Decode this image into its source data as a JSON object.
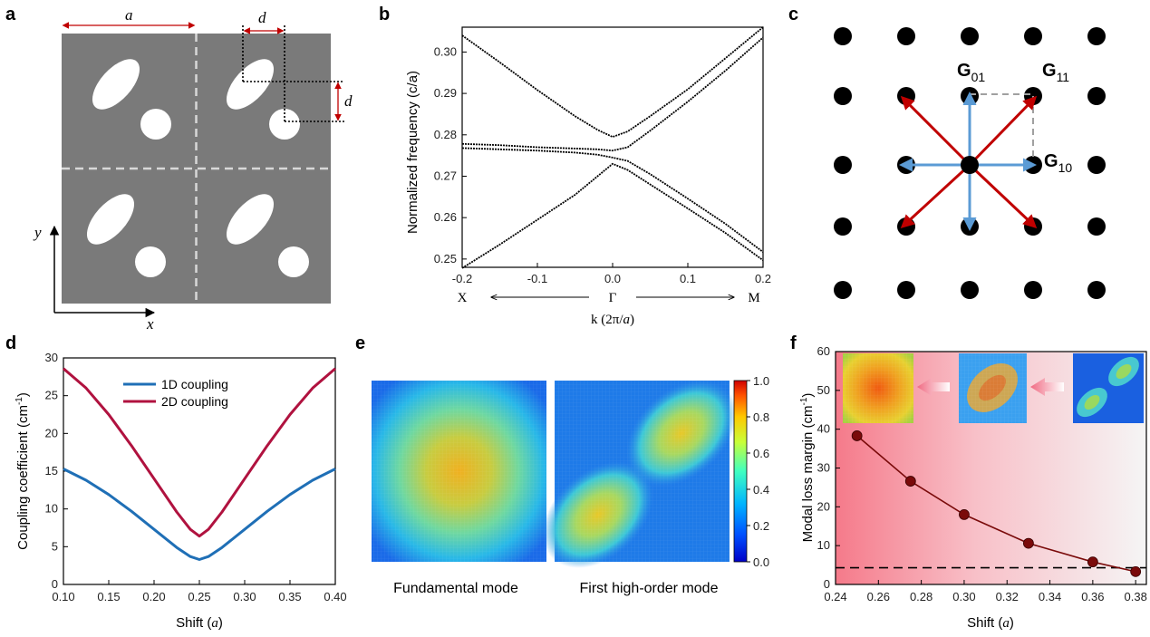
{
  "panel_labels": {
    "a": "a",
    "b": "b",
    "c": "c",
    "d": "d",
    "e": "e",
    "f": "f"
  },
  "panel_a": {
    "a_label": "a",
    "d_label_top": "d",
    "d_label_side": "d",
    "y_label": "y",
    "x_label": "x"
  },
  "panel_b": {
    "ylabel": "Normalized frequency (c/a)",
    "xlabel_prefix": "k (2π/",
    "xlabel_var": "a",
    "xlabel_suffix": ")",
    "x_left": "X",
    "x_mid": "Γ",
    "x_right": "M"
  },
  "panel_c": {
    "g01": "G",
    "g01_sub": "01",
    "g11": "G",
    "g11_sub": "11",
    "g10": "G",
    "g10_sub": "10"
  },
  "panel_d": {
    "ylabel": "Coupling coefficient (cm",
    "ylabel_sup": "-1",
    "ylabel_end": ")",
    "xlabel": "Shift (",
    "xlabel_var": "a",
    "xlabel_end": ")",
    "legend_1d": "1D coupling",
    "legend_2d": "2D coupling"
  },
  "panel_e": {
    "caption_left": "Fundamental mode",
    "caption_right": "First high-order mode",
    "colorbar_ticks": [
      "1.0",
      "0.8",
      "0.6",
      "0.4",
      "0.2",
      "0.0"
    ]
  },
  "panel_f": {
    "ylabel": "Modal loss margin (cm",
    "ylabel_sup": "-1",
    "ylabel_end": ")",
    "xlabel": "Shift (",
    "xlabel_var": "a",
    "xlabel_end": ")"
  },
  "colors": {
    "cell": "#7a7a7a",
    "red": "#b00000",
    "arrow_red": "#c00000",
    "arrow_blue": "#5b9bd5",
    "line_1d": "#1f6fb6",
    "line_2d": "#b0123f",
    "marker_f": "#7a0a0a"
  },
  "chart_data": [
    {
      "id": "b",
      "type": "line",
      "xlabel": "k (2π/a)",
      "ylabel": "Normalized frequency (c/a)",
      "xlim": [
        -0.2,
        0.2
      ],
      "ylim": [
        0.248,
        0.306
      ],
      "xticks": [
        -0.2,
        -0.1,
        0.0,
        0.1,
        0.2
      ],
      "yticks": [
        0.25,
        0.26,
        0.27,
        0.28,
        0.29,
        0.3
      ],
      "bands": [
        {
          "x": [
            -0.2,
            -0.15,
            -0.1,
            -0.05,
            -0.02,
            0.0,
            0.02,
            0.05,
            0.1,
            0.15,
            0.2
          ],
          "y": [
            0.2478,
            0.2535,
            0.2595,
            0.2655,
            0.27,
            0.273,
            0.2715,
            0.268,
            0.2622,
            0.2563,
            0.2497
          ]
        },
        {
          "x": [
            -0.2,
            -0.15,
            -0.1,
            -0.05,
            -0.02,
            0.0,
            0.02,
            0.05,
            0.1,
            0.15,
            0.2
          ],
          "y": [
            0.2768,
            0.2765,
            0.2762,
            0.2757,
            0.2752,
            0.2745,
            0.2737,
            0.2705,
            0.2646,
            0.2585,
            0.2517
          ]
        },
        {
          "x": [
            -0.2,
            -0.15,
            -0.1,
            -0.05,
            -0.02,
            0.0,
            0.02,
            0.05,
            0.1,
            0.15,
            0.2
          ],
          "y": [
            0.2778,
            0.2775,
            0.277,
            0.2767,
            0.2765,
            0.2762,
            0.277,
            0.281,
            0.288,
            0.2955,
            0.3035
          ]
        },
        {
          "x": [
            -0.2,
            -0.15,
            -0.1,
            -0.05,
            -0.02,
            0.0,
            0.02,
            0.05,
            0.1,
            0.15,
            0.2
          ],
          "y": [
            0.304,
            0.2975,
            0.2908,
            0.2845,
            0.2812,
            0.2795,
            0.2808,
            0.2845,
            0.291,
            0.2985,
            0.306
          ]
        }
      ]
    },
    {
      "id": "d",
      "type": "line",
      "xlabel": "Shift (a)",
      "ylabel": "Coupling coefficient (cm-1)",
      "xlim": [
        0.1,
        0.4
      ],
      "ylim": [
        0,
        30
      ],
      "xticks": [
        "0.10",
        "0.15",
        "0.20",
        "0.25",
        "0.30",
        "0.35",
        "0.40"
      ],
      "yticks": [
        0,
        5,
        10,
        15,
        20,
        25,
        30
      ],
      "series": [
        {
          "name": "1D coupling",
          "x": [
            0.1,
            0.125,
            0.15,
            0.175,
            0.2,
            0.225,
            0.24,
            0.25,
            0.26,
            0.275,
            0.3,
            0.325,
            0.35,
            0.375,
            0.4
          ],
          "y": [
            15.3,
            13.8,
            11.9,
            9.7,
            7.3,
            4.9,
            3.7,
            3.3,
            3.7,
            4.9,
            7.3,
            9.7,
            11.9,
            13.8,
            15.3
          ]
        },
        {
          "name": "2D coupling",
          "x": [
            0.1,
            0.125,
            0.15,
            0.175,
            0.2,
            0.225,
            0.24,
            0.25,
            0.26,
            0.275,
            0.3,
            0.325,
            0.35,
            0.375,
            0.4
          ],
          "y": [
            28.6,
            26.0,
            22.5,
            18.4,
            14.0,
            9.6,
            7.3,
            6.4,
            7.3,
            9.6,
            14.0,
            18.4,
            22.5,
            26.0,
            28.6
          ]
        }
      ]
    },
    {
      "id": "f",
      "type": "scatter",
      "xlabel": "Shift (a)",
      "ylabel": "Modal loss margin (cm-1)",
      "xlim": [
        0.24,
        0.385
      ],
      "ylim": [
        0,
        60
      ],
      "xticks": [
        "0.24",
        "0.26",
        "0.28",
        "0.30",
        "0.32",
        "0.34",
        "0.36",
        "0.38"
      ],
      "yticks": [
        0,
        10,
        20,
        30,
        40,
        50,
        60
      ],
      "x": [
        0.25,
        0.275,
        0.3,
        0.33,
        0.36,
        0.38
      ],
      "y": [
        38.3,
        26.6,
        18.0,
        10.6,
        5.8,
        3.3
      ],
      "reference_y": 4.3
    }
  ]
}
